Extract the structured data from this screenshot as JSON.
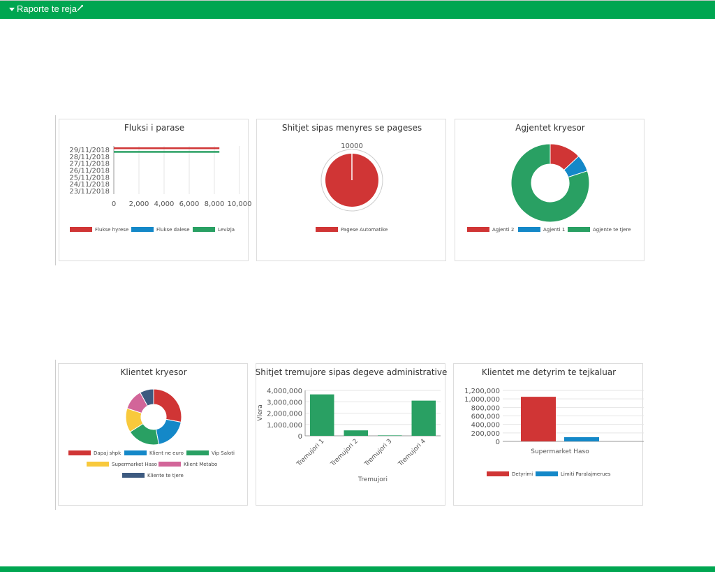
{
  "header": {
    "title": "Raporte te reja"
  },
  "colors": {
    "bar": "#00a651",
    "red": "#d03535",
    "blue": "#1488c8",
    "green": "#29a063",
    "yellow": "#f8c93c",
    "pink": "#d26599",
    "navy": "#3d5a80"
  },
  "charts": [
    {
      "id": "fluksi",
      "type": "bar",
      "orientation": "horizontal",
      "title": "Fluksi i parase",
      "categories": [
        "29/11/2018",
        "28/11/2018",
        "27/11/2018",
        "26/11/2018",
        "25/11/2018",
        "24/11/2018",
        "23/11/2018"
      ],
      "series": [
        {
          "name": "Flukse hyrese",
          "color": "#d03535",
          "values": [
            8400,
            0,
            0,
            0,
            0,
            0,
            0
          ]
        },
        {
          "name": "Flukse dalese",
          "color": "#1488c8",
          "values": [
            0,
            0,
            0,
            0,
            0,
            0,
            0
          ]
        },
        {
          "name": "Levizja",
          "color": "#29a063",
          "values": [
            8400,
            0,
            0,
            0,
            0,
            0,
            0
          ]
        }
      ],
      "xlim": [
        0,
        10000
      ],
      "xticks": [
        0,
        2000,
        4000,
        6000,
        8000,
        10000
      ],
      "tick_labels": [
        "0",
        "2,000",
        "4,000",
        "6,000",
        "8,000",
        "10,000"
      ]
    },
    {
      "id": "menyra",
      "type": "pie",
      "title": "Shitjet sipas menyres se pageses",
      "slices": [
        {
          "name": "Pagese Automatike",
          "value": 10000,
          "color": "#d03535"
        }
      ],
      "scale_label": "10000"
    },
    {
      "id": "agjentet",
      "type": "pie",
      "donut": true,
      "title": "Agjentet kryesor",
      "slices": [
        {
          "name": "Agjenti 2",
          "value": 13,
          "color": "#d03535"
        },
        {
          "name": "Agjenti 1",
          "value": 7,
          "color": "#1488c8"
        },
        {
          "name": "Agjente te tjere",
          "value": 80,
          "color": "#29a063"
        }
      ]
    },
    {
      "id": "klientet",
      "type": "pie",
      "donut": true,
      "title": "Klientet kryesor",
      "slices": [
        {
          "name": "Dapaj shpk",
          "value": 28,
          "color": "#d03535"
        },
        {
          "name": "Klient ne euro",
          "value": 19,
          "color": "#1488c8"
        },
        {
          "name": "Vip Saloti",
          "value": 19,
          "color": "#29a063"
        },
        {
          "name": "Supermarket Haso",
          "value": 14,
          "color": "#f8c93c"
        },
        {
          "name": "Klient Metabo",
          "value": 12,
          "color": "#d26599"
        },
        {
          "name": "Kliente te tjere",
          "value": 8,
          "color": "#3d5a80"
        }
      ]
    },
    {
      "id": "tremujore",
      "type": "bar",
      "title": "Shitjet tremujore sipas degeve administrative",
      "categories": [
        "Tremujori 1",
        "Tremujori 2",
        "Tremujori 3",
        "Tremujori 4"
      ],
      "series": [
        {
          "color": "#29a063",
          "values": [
            3650000,
            480000,
            40000,
            3100000
          ]
        }
      ],
      "ylim": [
        0,
        4000000
      ],
      "yticks": [
        0,
        1000000,
        2000000,
        3000000,
        4000000
      ],
      "tick_labels": [
        "0",
        "1,000,000",
        "2,000,000",
        "3,000,000",
        "4,000,000"
      ],
      "xlabel": "Tremujori",
      "ylabel": "Vlera"
    },
    {
      "id": "detyrim",
      "type": "bar",
      "title": "Klientet me detyrim te tejkaluar",
      "categories": [
        "Supermarket Haso"
      ],
      "series": [
        {
          "name": "Detyrimi",
          "color": "#d03535",
          "values": [
            1050000
          ]
        },
        {
          "name": "Limiti Paralajmerues",
          "color": "#1488c8",
          "values": [
            100000
          ]
        }
      ],
      "ylim": [
        0,
        1200000
      ],
      "yticks": [
        0,
        200000,
        400000,
        600000,
        800000,
        1000000,
        1200000
      ],
      "tick_labels": [
        "0",
        "200,000",
        "400,000",
        "600,000",
        "800,000",
        "1,000,000",
        "1,200,000"
      ]
    }
  ]
}
